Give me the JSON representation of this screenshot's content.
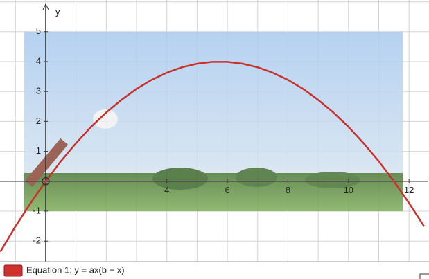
{
  "chart_data": {
    "type": "line",
    "y_label": "y",
    "legend_label": "Equation 1: y = ax(b − x)",
    "x": [
      -1.5,
      -1,
      -0.5,
      0,
      0.5,
      1,
      1.5,
      2,
      2.5,
      3,
      3.5,
      4,
      4.5,
      5,
      5.5,
      6,
      6.5,
      7,
      7.5,
      8,
      8.5,
      9,
      9.5,
      10,
      10.5,
      11,
      11.5,
      12,
      12.5
    ],
    "series": [
      {
        "name": "Equation 1",
        "color": "#c8312b",
        "values": [
          -2.36,
          -1.51,
          -0.73,
          0,
          0.67,
          1.27,
          1.82,
          2.3,
          2.72,
          3.09,
          3.39,
          3.63,
          3.81,
          3.93,
          3.99,
          3.99,
          3.93,
          3.81,
          3.63,
          3.39,
          3.09,
          2.72,
          2.3,
          1.82,
          1.27,
          0.67,
          0,
          -0.73,
          -1.51
        ]
      }
    ],
    "xlim": [
      -1.51,
      12.66
    ],
    "ylim": [
      -2.69,
      6.06
    ],
    "xticks": [
      4,
      6,
      8,
      10,
      12
    ],
    "yticks": [
      -2,
      -1,
      1,
      2,
      3,
      4,
      5
    ],
    "grid": true
  }
}
